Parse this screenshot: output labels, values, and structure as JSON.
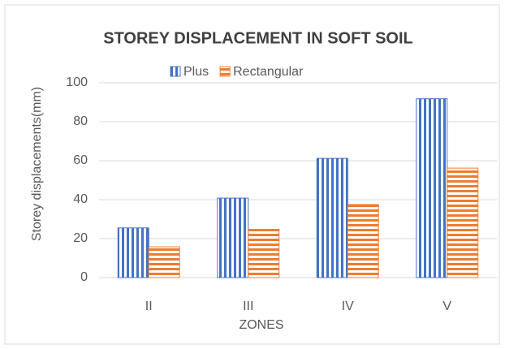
{
  "chart_data": {
    "type": "bar",
    "title": "STOREY DISPLACEMENT IN SOFT SOIL",
    "x_label": "ZONES",
    "y_label": "Storey displacements(mm)",
    "categories": [
      "II",
      "III",
      "IV",
      "V"
    ],
    "series": [
      {
        "name": "Plus",
        "color": "#4472c4",
        "values": [
          25.5,
          40.8,
          61.2,
          91.8
        ]
      },
      {
        "name": "Rectangular",
        "color": "#ed7d31",
        "values": [
          15.8,
          24.8,
          37.5,
          56.2
        ]
      }
    ],
    "ylim": [
      0,
      100
    ],
    "yticks": [
      0,
      20,
      40,
      60,
      80,
      100
    ],
    "grid": true,
    "legend": "top"
  }
}
